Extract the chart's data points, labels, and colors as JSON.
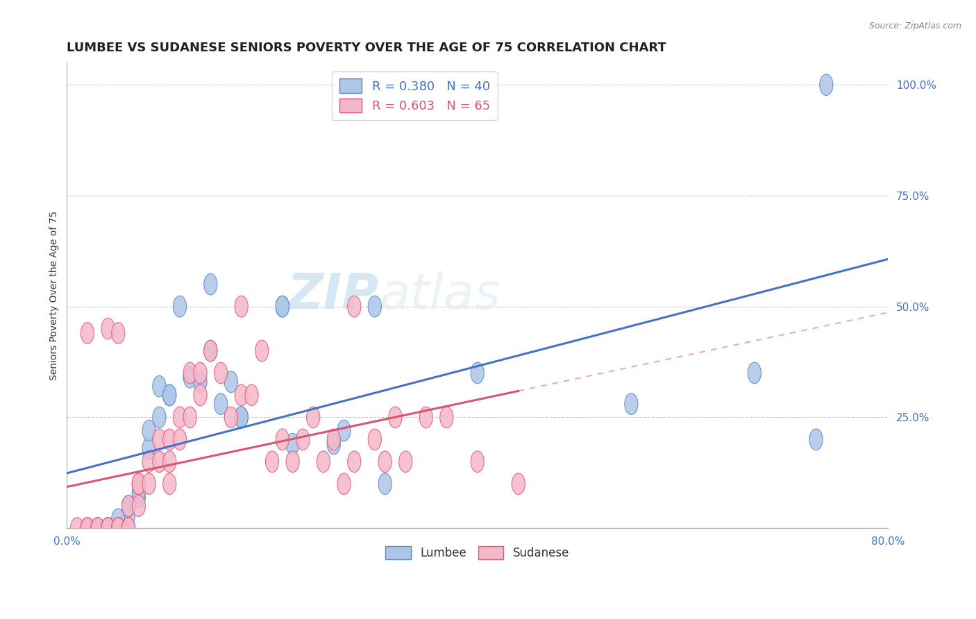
{
  "title": "LUMBEE VS SUDANESE SENIORS POVERTY OVER THE AGE OF 75 CORRELATION CHART",
  "source": "Source: ZipAtlas.com",
  "ylabel": "Seniors Poverty Over the Age of 75",
  "xlim": [
    0.0,
    0.8
  ],
  "ylim": [
    0.0,
    1.05
  ],
  "xticks": [
    0.0,
    0.1,
    0.2,
    0.3,
    0.4,
    0.5,
    0.6,
    0.7,
    0.8
  ],
  "xticklabels": [
    "0.0%",
    "",
    "",
    "",
    "",
    "",
    "",
    "",
    "80.0%"
  ],
  "ytick_positions": [
    0.25,
    0.5,
    0.75,
    1.0
  ],
  "yticklabels": [
    "25.0%",
    "50.0%",
    "75.0%",
    "100.0%"
  ],
  "lumbee_R": "0.380",
  "lumbee_N": "40",
  "sudanese_R": "0.603",
  "sudanese_N": "65",
  "lumbee_color": "#aec6e8",
  "sudanese_color": "#f5b8c8",
  "lumbee_edge_color": "#5588cc",
  "sudanese_edge_color": "#e05580",
  "lumbee_line_color": "#4472c4",
  "sudanese_line_color": "#d9546e",
  "background_color": "#ffffff",
  "watermark_zip": "ZIP",
  "watermark_atlas": "atlas",
  "grid_color": "#cccccc",
  "lumbee_x": [
    0.05,
    0.05,
    0.05,
    0.05,
    0.05,
    0.05,
    0.05,
    0.05,
    0.06,
    0.07,
    0.08,
    0.09,
    0.1,
    0.11,
    0.12,
    0.13,
    0.14,
    0.15,
    0.16,
    0.17,
    0.21,
    0.22,
    0.26,
    0.27,
    0.3,
    0.31,
    0.4,
    0.55,
    0.67,
    0.73,
    0.74,
    0.05,
    0.06,
    0.07,
    0.08,
    0.09,
    0.1,
    0.14,
    0.17,
    0.21
  ],
  "lumbee_y": [
    0.0,
    0.0,
    0.0,
    0.0,
    0.0,
    0.0,
    0.0,
    0.0,
    0.03,
    0.07,
    0.18,
    0.25,
    0.3,
    0.5,
    0.34,
    0.33,
    0.55,
    0.28,
    0.33,
    0.25,
    0.5,
    0.19,
    0.19,
    0.22,
    0.5,
    0.1,
    0.35,
    0.28,
    0.35,
    0.2,
    1.0,
    0.02,
    0.05,
    0.08,
    0.22,
    0.32,
    0.3,
    0.4,
    0.25,
    0.5
  ],
  "sudanese_x": [
    0.01,
    0.02,
    0.02,
    0.02,
    0.02,
    0.03,
    0.03,
    0.03,
    0.03,
    0.04,
    0.04,
    0.04,
    0.04,
    0.05,
    0.05,
    0.05,
    0.05,
    0.05,
    0.06,
    0.06,
    0.06,
    0.07,
    0.07,
    0.07,
    0.08,
    0.08,
    0.09,
    0.09,
    0.1,
    0.1,
    0.1,
    0.11,
    0.11,
    0.12,
    0.12,
    0.13,
    0.13,
    0.14,
    0.15,
    0.16,
    0.17,
    0.17,
    0.18,
    0.19,
    0.2,
    0.21,
    0.22,
    0.23,
    0.24,
    0.25,
    0.26,
    0.27,
    0.28,
    0.28,
    0.3,
    0.31,
    0.32,
    0.33,
    0.35,
    0.37,
    0.4,
    0.44,
    0.02,
    0.04,
    0.05
  ],
  "sudanese_y": [
    0.0,
    0.0,
    0.0,
    0.0,
    0.0,
    0.0,
    0.0,
    0.0,
    0.0,
    0.0,
    0.0,
    0.0,
    0.0,
    0.0,
    0.0,
    0.0,
    0.0,
    0.0,
    0.0,
    0.0,
    0.05,
    0.05,
    0.1,
    0.1,
    0.1,
    0.15,
    0.15,
    0.2,
    0.1,
    0.15,
    0.2,
    0.2,
    0.25,
    0.25,
    0.35,
    0.3,
    0.35,
    0.4,
    0.35,
    0.25,
    0.3,
    0.5,
    0.3,
    0.4,
    0.15,
    0.2,
    0.15,
    0.2,
    0.25,
    0.15,
    0.2,
    0.1,
    0.15,
    0.5,
    0.2,
    0.15,
    0.25,
    0.15,
    0.25,
    0.25,
    0.15,
    0.1,
    0.44,
    0.45,
    0.44
  ],
  "title_fontsize": 13,
  "axis_label_fontsize": 10,
  "tick_fontsize": 11
}
